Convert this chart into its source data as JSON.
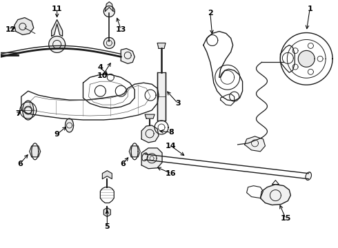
{
  "background_color": "#ffffff",
  "fig_width": 4.9,
  "fig_height": 3.6,
  "dpi": 100,
  "line_color": "#1a1a1a",
  "label_color": "#000000"
}
